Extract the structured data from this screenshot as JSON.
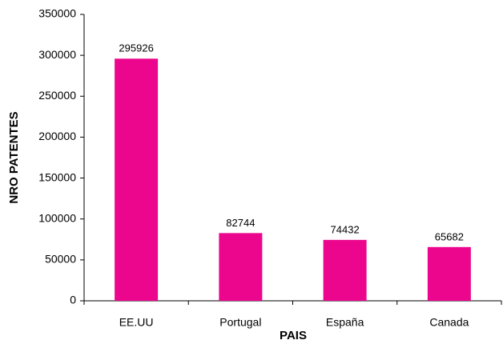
{
  "chart_data": {
    "type": "bar",
    "x_label": "PAIS",
    "y_label": "NRO PATENTES",
    "categories": [
      "EE.UU",
      "Portugal",
      "España",
      "Canada"
    ],
    "values": [
      295926,
      82744,
      74432,
      65682
    ],
    "color": "#ec068d",
    "ylim": [
      0,
      350000
    ],
    "yticks": [
      0,
      50000,
      100000,
      150000,
      200000,
      250000,
      300000,
      350000
    ],
    "grid": false
  }
}
